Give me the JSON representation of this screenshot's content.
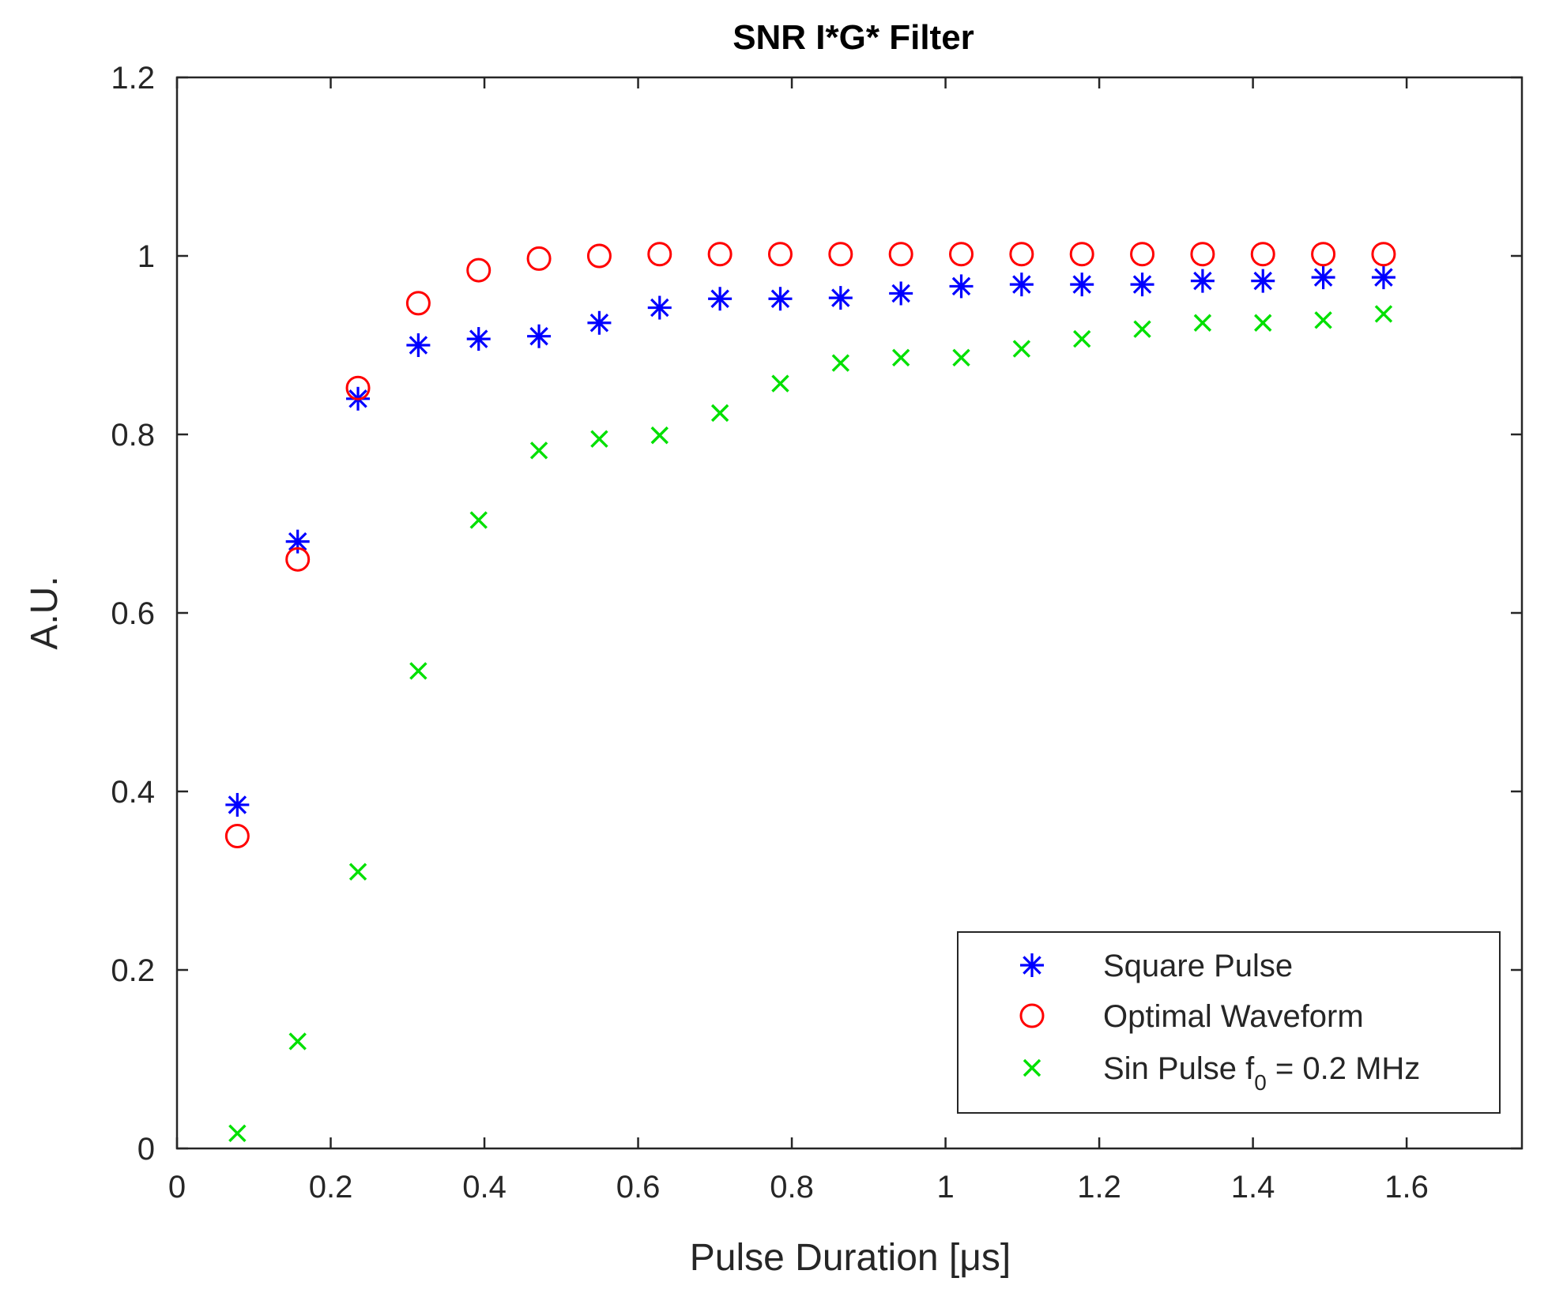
{
  "chart_data": {
    "type": "scatter",
    "title": "SNR I*G* Filter",
    "xlabel": "Pulse Duration [μs]",
    "ylabel": "A.U.",
    "xlim": [
      0,
      1.75
    ],
    "ylim": [
      0,
      1.2
    ],
    "xticks": [
      0,
      0.2,
      0.4,
      0.6,
      0.8,
      1,
      1.2,
      1.4,
      1.6
    ],
    "xtick_labels": [
      "0",
      "0.2",
      "0.4",
      "0.6",
      "0.8",
      "1",
      "1.2",
      "1.4",
      "1.6"
    ],
    "yticks": [
      0,
      0.2,
      0.4,
      0.6,
      0.8,
      1,
      1.2
    ],
    "ytick_labels": [
      "0",
      "0.2",
      "0.4",
      "0.6",
      "0.8",
      "1",
      "1.2"
    ],
    "grid": false,
    "legend_position": "bottom-right",
    "x": [
      0.0785,
      0.157,
      0.2355,
      0.314,
      0.3925,
      0.471,
      0.5495,
      0.628,
      0.7065,
      0.785,
      0.8635,
      0.942,
      1.0205,
      1.099,
      1.1775,
      1.256,
      1.3345,
      1.413,
      1.4915,
      1.57
    ],
    "series": [
      {
        "name": "Square Pulse",
        "marker": "asterisk",
        "color": "#0000ff",
        "values": [
          0.385,
          0.68,
          0.84,
          0.9,
          0.907,
          0.91,
          0.925,
          0.942,
          0.952,
          0.952,
          0.953,
          0.958,
          0.966,
          0.968,
          0.968,
          0.968,
          0.972,
          0.972,
          0.976,
          0.976
        ]
      },
      {
        "name": "Optimal Waveform",
        "marker": "circle",
        "color": "#ff0000",
        "values": [
          0.35,
          0.66,
          0.852,
          0.947,
          0.984,
          0.997,
          1.0,
          1.002,
          1.002,
          1.002,
          1.002,
          1.002,
          1.002,
          1.002,
          1.002,
          1.002,
          1.002,
          1.002,
          1.002,
          1.002
        ]
      },
      {
        "name": "Sin Pulse f",
        "name_subscript": "0",
        "name_suffix": " = 0.2 MHz",
        "marker": "x",
        "color": "#00e000",
        "values": [
          0.017,
          0.12,
          0.31,
          0.535,
          0.704,
          0.782,
          0.795,
          0.799,
          0.824,
          0.857,
          0.88,
          0.886,
          0.886,
          0.896,
          0.907,
          0.918,
          0.925,
          0.925,
          0.928,
          0.935
        ]
      }
    ]
  }
}
